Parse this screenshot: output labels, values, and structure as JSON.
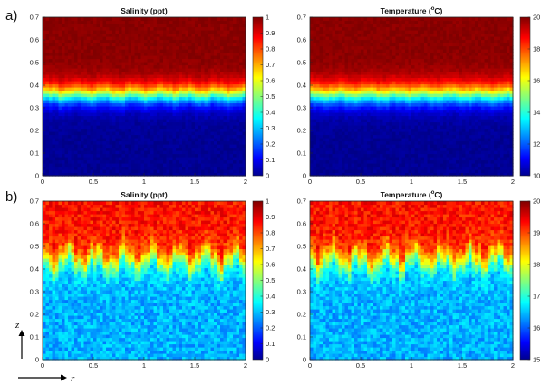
{
  "chart_data": [
    {
      "type": "heatmap",
      "panel_label": "a)",
      "title_parts": [
        "Salinity (ppt)"
      ],
      "xticks": [
        "0",
        "0.5",
        "1",
        "1.5",
        "2"
      ],
      "yticks": [
        "0",
        "0.1",
        "0.2",
        "0.3",
        "0.4",
        "0.5",
        "0.6",
        "0.7"
      ],
      "xlim": [
        0,
        2
      ],
      "ylim": [
        0,
        0.7
      ],
      "colorbar_ticks": [
        "0",
        "0.1",
        "0.2",
        "0.3",
        "0.4",
        "0.5",
        "0.6",
        "0.7",
        "0.8",
        "0.9",
        "1"
      ],
      "clim": [
        0,
        1
      ],
      "field": {
        "interface": 0.36,
        "width": 0.028,
        "roughness": 0.005,
        "low": 0.02,
        "high": 0.99
      }
    },
    {
      "type": "heatmap",
      "panel_label": "",
      "title_parts": [
        "Temperature (",
        "o",
        "C)"
      ],
      "xticks": [
        "0",
        "0.5",
        "1",
        "1.5",
        "2"
      ],
      "yticks": [
        "0",
        "0.1",
        "0.2",
        "0.3",
        "0.4",
        "0.5",
        "0.6",
        "0.7"
      ],
      "xlim": [
        0,
        2
      ],
      "ylim": [
        0,
        0.7
      ],
      "colorbar_ticks": [
        "10",
        "12",
        "14",
        "16",
        "18",
        "20"
      ],
      "clim": [
        10,
        20
      ],
      "field": {
        "interface": 0.36,
        "width": 0.03,
        "roughness": 0.004,
        "low": 0.02,
        "high": 0.99
      }
    },
    {
      "type": "heatmap",
      "panel_label": "b)",
      "title_parts": [
        "Salinity (ppt)"
      ],
      "xticks": [
        "0",
        "0.5",
        "1",
        "1.5",
        "2"
      ],
      "yticks": [
        "0",
        "0.1",
        "0.2",
        "0.3",
        "0.4",
        "0.5",
        "0.6",
        "0.7"
      ],
      "xlim": [
        0,
        2
      ],
      "ylim": [
        0,
        0.7
      ],
      "colorbar_ticks": [
        "0",
        "0.1",
        "0.2",
        "0.3",
        "0.4",
        "0.5",
        "0.6",
        "0.7",
        "0.8",
        "0.9",
        "1"
      ],
      "clim": [
        0,
        1
      ],
      "field": {
        "interface": 0.44,
        "width": 0.03,
        "roughness": 0.03,
        "low": 0.3,
        "high": 0.86
      }
    },
    {
      "type": "heatmap",
      "panel_label": "",
      "title_parts": [
        "Temperature (",
        "o",
        "C)"
      ],
      "xticks": [
        "0",
        "0.5",
        "1",
        "1.5",
        "2"
      ],
      "yticks": [
        "0",
        "0.1",
        "0.2",
        "0.3",
        "0.4",
        "0.5",
        "0.6",
        "0.7"
      ],
      "xlim": [
        0,
        2
      ],
      "ylim": [
        0,
        0.7
      ],
      "colorbar_ticks": [
        "15",
        "16",
        "17",
        "18",
        "19",
        "20"
      ],
      "clim": [
        15,
        20
      ],
      "field": {
        "interface": 0.44,
        "width": 0.03,
        "roughness": 0.03,
        "low": 0.3,
        "high": 0.86
      }
    }
  ],
  "axis_indicator": {
    "vertical": "z",
    "horizontal": "r"
  },
  "colormap": "jet"
}
